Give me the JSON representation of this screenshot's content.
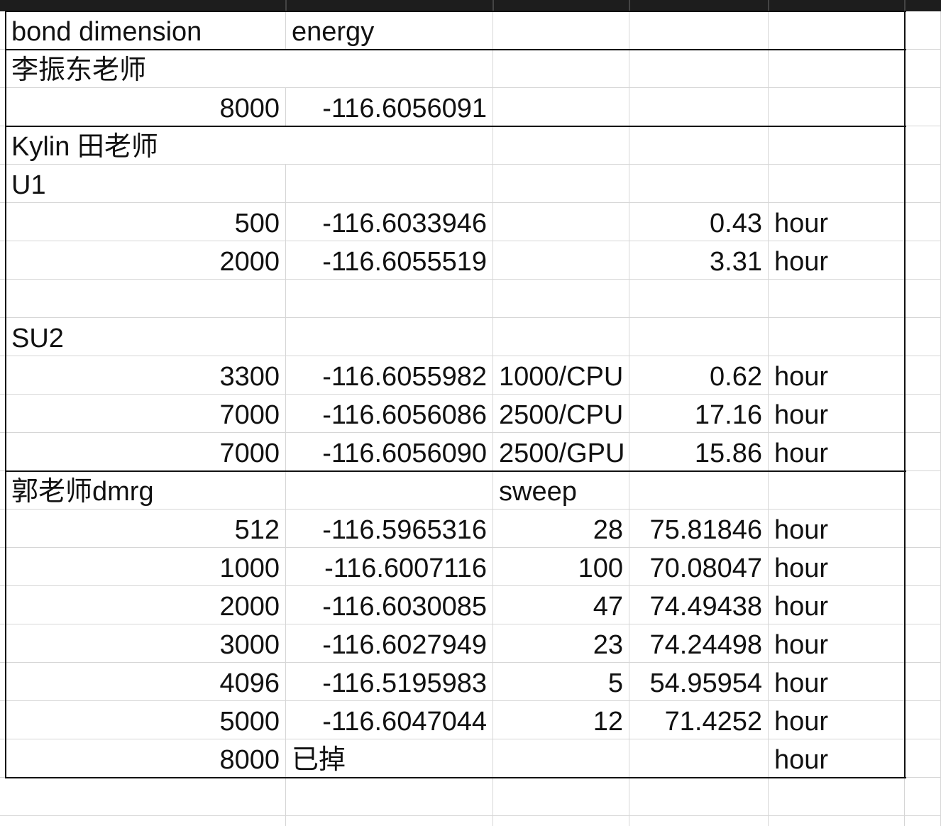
{
  "sheet": {
    "rows": [
      [
        "bond dimension",
        "energy",
        "",
        "",
        ""
      ],
      [
        "李振东老师",
        "",
        "",
        "",
        ""
      ],
      [
        "8000",
        "-116.6056091",
        "",
        "",
        ""
      ],
      [
        "Kylin 田老师",
        "",
        "",
        "",
        ""
      ],
      [
        "U1",
        "",
        "",
        "",
        ""
      ],
      [
        "500",
        "-116.6033946",
        "",
        "0.43",
        "hour"
      ],
      [
        "2000",
        "-116.6055519",
        "",
        "3.31",
        "hour"
      ],
      [
        "",
        "",
        "",
        "",
        ""
      ],
      [
        "SU2",
        "",
        "",
        "",
        ""
      ],
      [
        "3300",
        "-116.6055982",
        "1000/CPU",
        "0.62",
        "hour"
      ],
      [
        "7000",
        "-116.6056086",
        "2500/CPU",
        "17.16",
        "hour"
      ],
      [
        "7000",
        "-116.6056090",
        "2500/GPU",
        "15.86",
        "hour"
      ],
      [
        "郭老师dmrg",
        "",
        "sweep",
        "",
        ""
      ],
      [
        "512",
        "-116.5965316",
        "28",
        "75.81846",
        "hour"
      ],
      [
        "1000",
        "-116.6007116",
        "100",
        "70.08047",
        "hour"
      ],
      [
        "2000",
        "-116.6030085",
        "47",
        "74.49438",
        "hour"
      ],
      [
        "3000",
        "-116.6027949",
        "23",
        "74.24498",
        "hour"
      ],
      [
        "4096",
        "-116.5195983",
        "5",
        "54.95954",
        "hour"
      ],
      [
        "5000",
        "-116.6047044",
        "12",
        "71.4252",
        "hour"
      ],
      [
        "8000",
        "已掉",
        "",
        "",
        "hour"
      ]
    ]
  },
  "colors": {
    "gridline": "#d6d6d6",
    "table_border": "#111111",
    "header_bar": "#1d1d1d",
    "text": "#111111"
  }
}
